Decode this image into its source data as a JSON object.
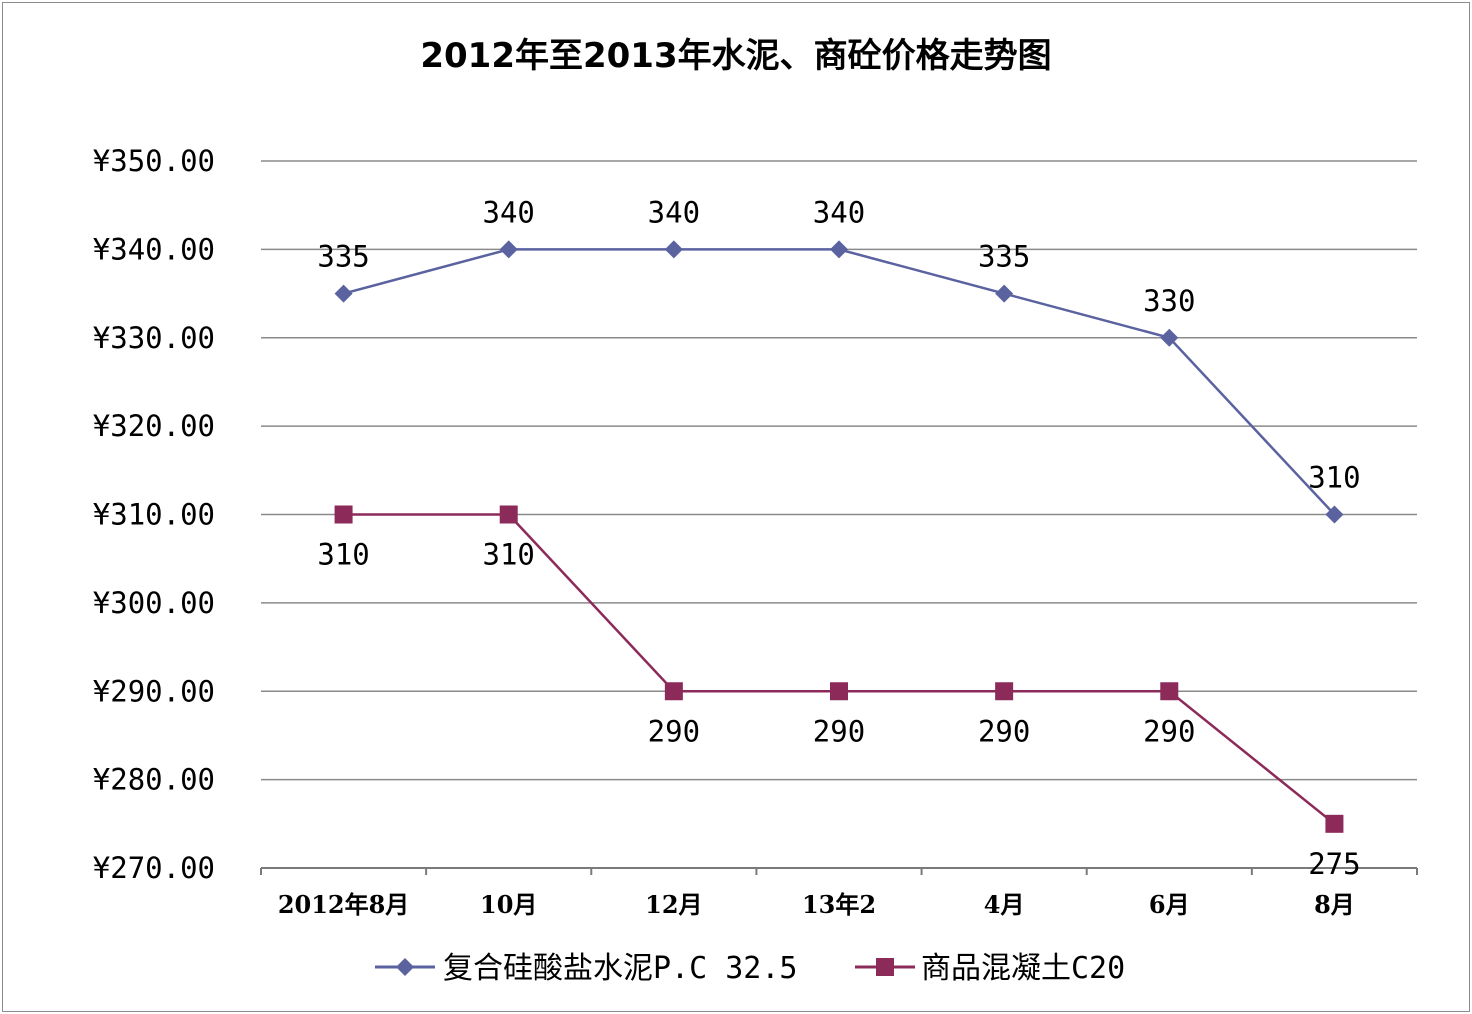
{
  "chart_data": {
    "type": "line",
    "title": "2012年至2013年水泥、商砼价格走势图",
    "categories": [
      "2012年8月",
      "10月",
      "12月",
      "13年2",
      "4月",
      "6月",
      "8月"
    ],
    "y_axis": {
      "ylim": [
        270,
        350
      ],
      "ticks": [
        350,
        340,
        330,
        320,
        310,
        300,
        290,
        280,
        270
      ],
      "tick_labels": [
        "¥350.00",
        "¥340.00",
        "¥330.00",
        "¥320.00",
        "¥310.00",
        "¥300.00",
        "¥290.00",
        "¥280.00",
        "¥270.00"
      ]
    },
    "grid": true,
    "legend_position": "bottom",
    "series": [
      {
        "name": "复合硅酸盐水泥P.C 32.5",
        "values": [
          335,
          340,
          340,
          340,
          335,
          330,
          310
        ],
        "data_labels": [
          "335",
          "340",
          "340",
          "340",
          "335",
          "330",
          "310"
        ],
        "label_position": "above",
        "color": "#5a62a0",
        "marker": "diamond"
      },
      {
        "name": "商品混凝土C20",
        "values": [
          310,
          310,
          290,
          290,
          290,
          290,
          275
        ],
        "data_labels": [
          "310",
          "310",
          "290",
          "290",
          "290",
          "290",
          "275"
        ],
        "label_position": "below",
        "color": "#8c2a5a",
        "marker": "square"
      }
    ]
  }
}
